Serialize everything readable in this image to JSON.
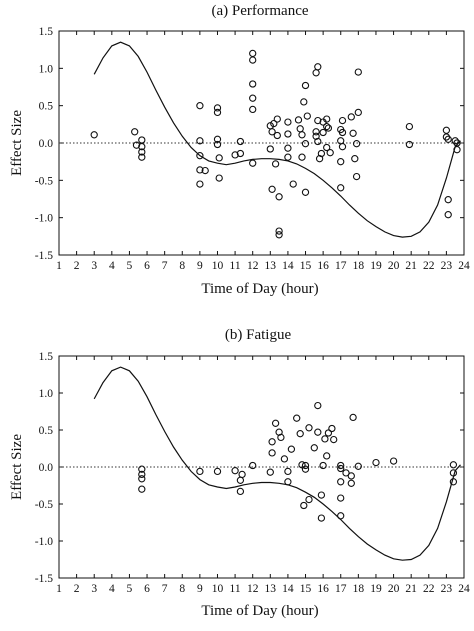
{
  "chart_data": [
    {
      "type": "scatter",
      "title": "(a) Performance",
      "xlabel": "Time of Day (hour)",
      "ylabel": "Effect Size",
      "xlim": [
        1,
        24
      ],
      "ylim": [
        -1.5,
        1.5
      ],
      "x_ticks": [
        "1",
        "2",
        "3",
        "4",
        "5",
        "6",
        "7",
        "8",
        "9",
        "10",
        "11",
        "12",
        "13",
        "14",
        "15",
        "16",
        "17",
        "18",
        "19",
        "20",
        "21",
        "22",
        "23",
        "24"
      ],
      "y_ticks": [
        "1.5",
        "1.0",
        "0.5",
        "0.0",
        "-0.5",
        "-1.0",
        "-1.5"
      ],
      "zero_line": "dotted",
      "grid": false,
      "series": [
        {
          "marker": "open-circle",
          "points": [
            [
              3.0,
              0.11
            ],
            [
              5.3,
              0.15
            ],
            [
              5.4,
              -0.03
            ],
            [
              5.7,
              0.04
            ],
            [
              5.7,
              -0.05
            ],
            [
              5.7,
              -0.12
            ],
            [
              5.7,
              -0.19
            ],
            [
              9.0,
              0.5
            ],
            [
              9.0,
              0.03
            ],
            [
              9.0,
              -0.17
            ],
            [
              9.0,
              -0.36
            ],
            [
              9.0,
              -0.55
            ],
            [
              9.3,
              -0.37
            ],
            [
              10.0,
              0.47
            ],
            [
              10.0,
              0.41
            ],
            [
              10.0,
              0.05
            ],
            [
              10.0,
              -0.02
            ],
            [
              10.1,
              -0.2
            ],
            [
              10.1,
              -0.47
            ],
            [
              11.0,
              -0.16
            ],
            [
              11.3,
              -0.14
            ],
            [
              11.3,
              0.02
            ],
            [
              12.0,
              1.2
            ],
            [
              12.0,
              1.11
            ],
            [
              12.0,
              0.79
            ],
            [
              12.0,
              0.6
            ],
            [
              12.0,
              0.45
            ],
            [
              12.0,
              -0.27
            ],
            [
              13.0,
              0.23
            ],
            [
              13.0,
              -0.08
            ],
            [
              13.1,
              0.15
            ],
            [
              13.1,
              -0.62
            ],
            [
              13.2,
              0.26
            ],
            [
              13.3,
              -0.28
            ],
            [
              13.4,
              0.32
            ],
            [
              13.4,
              0.1
            ],
            [
              13.5,
              -0.72
            ],
            [
              13.5,
              -1.18
            ],
            [
              13.5,
              -1.23
            ],
            [
              14.0,
              0.28
            ],
            [
              14.0,
              0.12
            ],
            [
              14.0,
              -0.07
            ],
            [
              14.0,
              -0.19
            ],
            [
              14.3,
              -0.55
            ],
            [
              14.6,
              0.31
            ],
            [
              14.7,
              0.19
            ],
            [
              14.8,
              0.11
            ],
            [
              14.8,
              -0.19
            ],
            [
              14.9,
              0.55
            ],
            [
              15.0,
              0.77
            ],
            [
              15.0,
              -0.01
            ],
            [
              15.0,
              -0.66
            ],
            [
              15.1,
              0.36
            ],
            [
              15.6,
              0.94
            ],
            [
              15.6,
              0.15
            ],
            [
              15.6,
              0.09
            ],
            [
              15.7,
              1.02
            ],
            [
              15.7,
              0.3
            ],
            [
              15.7,
              0.02
            ],
            [
              15.8,
              -0.21
            ],
            [
              15.9,
              -0.14
            ],
            [
              16.0,
              0.28
            ],
            [
              16.0,
              0.14
            ],
            [
              16.2,
              0.32
            ],
            [
              16.2,
              0.22
            ],
            [
              16.2,
              -0.06
            ],
            [
              16.3,
              0.2
            ],
            [
              16.4,
              -0.13
            ],
            [
              17.0,
              0.18
            ],
            [
              17.0,
              0.03
            ],
            [
              17.0,
              -0.25
            ],
            [
              17.0,
              -0.6
            ],
            [
              17.1,
              -0.05
            ],
            [
              17.1,
              0.14
            ],
            [
              17.1,
              0.3
            ],
            [
              17.6,
              0.35
            ],
            [
              17.7,
              0.13
            ],
            [
              17.8,
              -0.21
            ],
            [
              17.9,
              -0.01
            ],
            [
              17.9,
              -0.45
            ],
            [
              18.0,
              0.95
            ],
            [
              18.0,
              0.41
            ],
            [
              20.9,
              0.22
            ],
            [
              20.9,
              -0.02
            ],
            [
              23.0,
              0.17
            ],
            [
              23.0,
              0.08
            ],
            [
              23.1,
              0.05
            ],
            [
              23.1,
              -0.76
            ],
            [
              23.1,
              -0.96
            ],
            [
              23.5,
              0.03
            ],
            [
              23.6,
              0.0
            ],
            [
              23.6,
              -0.09
            ]
          ]
        },
        {
          "type": "line",
          "points": [
            [
              3.0,
              0.92
            ],
            [
              3.5,
              1.14
            ],
            [
              4.0,
              1.3
            ],
            [
              4.5,
              1.35
            ],
            [
              5.0,
              1.3
            ],
            [
              5.5,
              1.16
            ],
            [
              6.0,
              0.95
            ],
            [
              6.5,
              0.71
            ],
            [
              7.0,
              0.48
            ],
            [
              7.5,
              0.27
            ],
            [
              8.0,
              0.09
            ],
            [
              8.5,
              -0.06
            ],
            [
              9.0,
              -0.17
            ],
            [
              9.5,
              -0.24
            ],
            [
              10.0,
              -0.27
            ],
            [
              10.5,
              -0.29
            ],
            [
              11.0,
              -0.27
            ],
            [
              11.5,
              -0.24
            ],
            [
              12.0,
              -0.22
            ],
            [
              12.5,
              -0.21
            ],
            [
              13.0,
              -0.21
            ],
            [
              13.5,
              -0.22
            ],
            [
              14.0,
              -0.24
            ],
            [
              14.5,
              -0.28
            ],
            [
              15.0,
              -0.34
            ],
            [
              15.5,
              -0.41
            ],
            [
              16.0,
              -0.5
            ],
            [
              16.5,
              -0.6
            ],
            [
              17.0,
              -0.71
            ],
            [
              17.5,
              -0.83
            ],
            [
              18.0,
              -0.94
            ],
            [
              18.5,
              -1.04
            ],
            [
              19.0,
              -1.12
            ],
            [
              19.5,
              -1.19
            ],
            [
              20.0,
              -1.24
            ],
            [
              20.5,
              -1.26
            ],
            [
              21.0,
              -1.25
            ],
            [
              21.5,
              -1.19
            ],
            [
              22.0,
              -1.06
            ],
            [
              22.5,
              -0.83
            ],
            [
              23.0,
              -0.47
            ],
            [
              23.5,
              -0.05
            ],
            [
              23.8,
              0.03
            ]
          ]
        }
      ]
    },
    {
      "type": "scatter",
      "title": "(b) Fatigue",
      "xlabel": "Time of Day (hour)",
      "ylabel": "Effect Size",
      "xlim": [
        1,
        24
      ],
      "ylim": [
        -1.5,
        1.5
      ],
      "x_ticks": [
        "1",
        "2",
        "3",
        "4",
        "5",
        "6",
        "7",
        "8",
        "9",
        "10",
        "11",
        "12",
        "13",
        "14",
        "15",
        "16",
        "17",
        "18",
        "19",
        "20",
        "21",
        "22",
        "23",
        "24"
      ],
      "y_ticks": [
        "1.5",
        "1.0",
        "0.5",
        "0.0",
        "-0.5",
        "-1.0",
        "-1.5"
      ],
      "zero_line": "dotted",
      "grid": false,
      "series": [
        {
          "marker": "open-circle",
          "points": [
            [
              5.7,
              -0.03
            ],
            [
              5.7,
              -0.1
            ],
            [
              5.7,
              -0.16
            ],
            [
              5.7,
              -0.3
            ],
            [
              9.0,
              -0.06
            ],
            [
              10.0,
              -0.06
            ],
            [
              11.0,
              -0.05
            ],
            [
              11.3,
              -0.33
            ],
            [
              11.3,
              -0.18
            ],
            [
              11.4,
              -0.1
            ],
            [
              12.0,
              0.02
            ],
            [
              13.0,
              -0.07
            ],
            [
              13.1,
              0.34
            ],
            [
              13.1,
              0.19
            ],
            [
              13.3,
              0.59
            ],
            [
              13.5,
              0.47
            ],
            [
              13.6,
              0.4
            ],
            [
              13.8,
              0.11
            ],
            [
              14.0,
              -0.06
            ],
            [
              14.0,
              -0.2
            ],
            [
              14.2,
              0.24
            ],
            [
              14.5,
              0.66
            ],
            [
              14.7,
              0.45
            ],
            [
              14.8,
              0.03
            ],
            [
              14.9,
              -0.52
            ],
            [
              15.0,
              0.02
            ],
            [
              15.0,
              -0.03
            ],
            [
              15.2,
              0.53
            ],
            [
              15.2,
              -0.44
            ],
            [
              15.5,
              0.26
            ],
            [
              15.7,
              0.83
            ],
            [
              15.7,
              0.47
            ],
            [
              15.9,
              -0.38
            ],
            [
              15.9,
              -0.69
            ],
            [
              16.0,
              0.02
            ],
            [
              16.1,
              0.38
            ],
            [
              16.2,
              0.15
            ],
            [
              16.3,
              0.46
            ],
            [
              16.5,
              0.52
            ],
            [
              16.6,
              0.37
            ],
            [
              17.0,
              0.02
            ],
            [
              17.0,
              -0.02
            ],
            [
              17.0,
              -0.2
            ],
            [
              17.0,
              -0.42
            ],
            [
              17.0,
              -0.66
            ],
            [
              17.3,
              -0.08
            ],
            [
              17.6,
              -0.22
            ],
            [
              17.6,
              -0.12
            ],
            [
              17.7,
              0.67
            ],
            [
              18.0,
              0.01
            ],
            [
              19.0,
              0.06
            ],
            [
              20.0,
              0.08
            ],
            [
              23.4,
              0.03
            ],
            [
              23.4,
              -0.08
            ],
            [
              23.4,
              -0.2
            ]
          ]
        },
        {
          "type": "line",
          "points": [
            [
              3.0,
              0.92
            ],
            [
              3.5,
              1.14
            ],
            [
              4.0,
              1.3
            ],
            [
              4.5,
              1.35
            ],
            [
              5.0,
              1.3
            ],
            [
              5.5,
              1.16
            ],
            [
              6.0,
              0.95
            ],
            [
              6.5,
              0.71
            ],
            [
              7.0,
              0.48
            ],
            [
              7.5,
              0.27
            ],
            [
              8.0,
              0.09
            ],
            [
              8.5,
              -0.06
            ],
            [
              9.0,
              -0.17
            ],
            [
              9.5,
              -0.24
            ],
            [
              10.0,
              -0.27
            ],
            [
              10.5,
              -0.29
            ],
            [
              11.0,
              -0.27
            ],
            [
              11.5,
              -0.24
            ],
            [
              12.0,
              -0.22
            ],
            [
              12.5,
              -0.21
            ],
            [
              13.0,
              -0.21
            ],
            [
              13.5,
              -0.22
            ],
            [
              14.0,
              -0.24
            ],
            [
              14.5,
              -0.28
            ],
            [
              15.0,
              -0.34
            ],
            [
              15.5,
              -0.41
            ],
            [
              16.0,
              -0.5
            ],
            [
              16.5,
              -0.6
            ],
            [
              17.0,
              -0.71
            ],
            [
              17.5,
              -0.83
            ],
            [
              18.0,
              -0.94
            ],
            [
              18.5,
              -1.04
            ],
            [
              19.0,
              -1.12
            ],
            [
              19.5,
              -1.19
            ],
            [
              20.0,
              -1.24
            ],
            [
              20.5,
              -1.26
            ],
            [
              21.0,
              -1.25
            ],
            [
              21.5,
              -1.19
            ],
            [
              22.0,
              -1.06
            ],
            [
              22.5,
              -0.83
            ],
            [
              23.0,
              -0.47
            ],
            [
              23.5,
              -0.05
            ],
            [
              23.8,
              0.03
            ]
          ]
        }
      ]
    }
  ]
}
